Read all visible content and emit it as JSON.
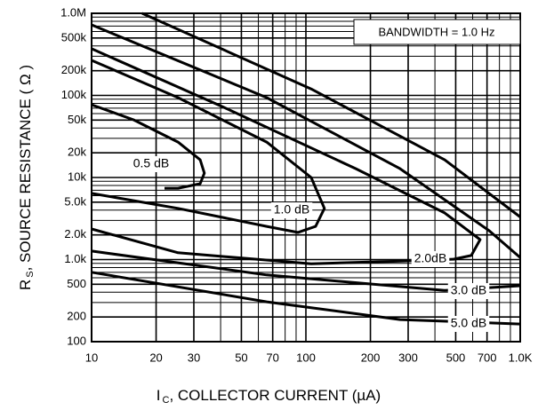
{
  "chart_data": {
    "type": "line",
    "xlog": true,
    "ylog": true,
    "grid": true,
    "minor_grid": true,
    "xlim": [
      10,
      1000
    ],
    "ylim": [
      100,
      1000000
    ],
    "xticks": [
      10,
      20,
      30,
      50,
      70,
      100,
      200,
      300,
      500,
      700,
      {
        "value": 1000,
        "label": "1.0K"
      }
    ],
    "yticks": [
      100,
      200,
      500,
      {
        "value": 1000,
        "label": "1.0k"
      },
      {
        "value": 2000,
        "label": "2.0k"
      },
      {
        "value": 5000,
        "label": "5.0k"
      },
      {
        "value": 10000,
        "label": "10k"
      },
      {
        "value": 20000,
        "label": "20k"
      },
      {
        "value": 50000,
        "label": "50k"
      },
      {
        "value": 100000,
        "label": "100k"
      },
      {
        "value": 200000,
        "label": "200k"
      },
      {
        "value": 500000,
        "label": "500k"
      },
      {
        "value": 1000000,
        "label": "1.0M"
      }
    ],
    "xlabel_symbol": "I",
    "xlabel_subscript": "C",
    "xlabel": ", COLLECTOR CURRENT (µA)",
    "ylabel_symbol": "R",
    "ylabel_subscript": "S",
    "ylabel": ", SOURCE RESISTANCE ( Ω )",
    "annotation": "BANDWIDTH = 1.0 Hz",
    "series": [
      {
        "name": "0.5 dB",
        "color": "#000000",
        "x": [
          10,
          15.7,
          25.3,
          32.1,
          33.6,
          32.1,
          25.3,
          21.9
        ],
        "values": [
          77000,
          50400,
          27000,
          16400,
          11300,
          8400,
          7400,
          7400
        ]
      },
      {
        "name": "1.0 dB",
        "color": "#000000",
        "x": [
          10,
          25.3,
          65.6,
          105.8,
          122,
          111,
          91.8,
          65.6,
          25.3,
          10
        ],
        "values": [
          267000,
          94000,
          27000,
          10000,
          4200,
          2540,
          2140,
          2540,
          4200,
          6400
        ]
      },
      {
        "name": "2.0dB",
        "color": "#000000",
        "x": [
          10,
          40.7,
          171,
          444,
          650,
          591,
          488,
          289,
          105.8,
          25.3,
          10
        ],
        "values": [
          370000,
          73000,
          12800,
          3700,
          1750,
          1120,
          1010,
          960,
          890,
          1210,
          2360
        ]
      },
      {
        "name": "3.0 dB",
        "color": "#000000",
        "x": [
          10,
          65.6,
          275,
          716,
          1000,
          null,
          10,
          65.6,
          444,
          1000
        ],
        "values": [
          724000,
          94000,
          12800,
          2250,
          1060,
          null,
          1270,
          650,
          420,
          480
        ]
      },
      {
        "name": "5.0 dB",
        "color": "#000000",
        "x": [
          17.2,
          105.8,
          444,
          1000,
          null,
          10,
          65.6,
          275,
          1000
        ],
        "values": [
          1000000,
          120000,
          16400,
          3300,
          null,
          700,
          306,
          186,
          164
        ]
      }
    ]
  }
}
